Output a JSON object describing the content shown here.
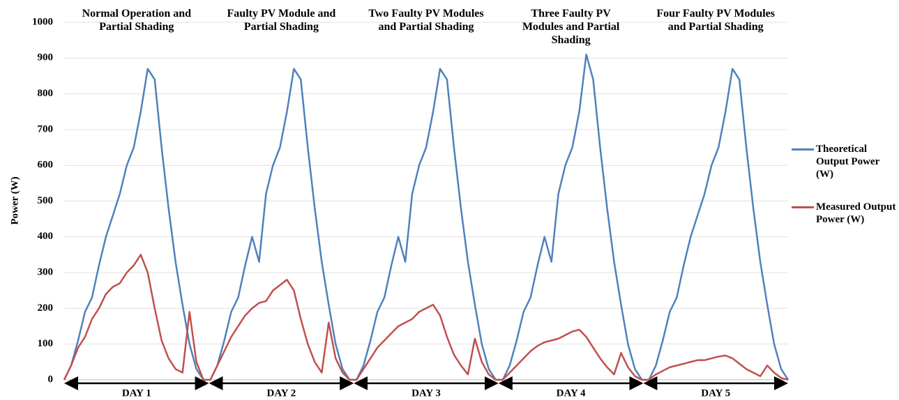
{
  "chart_data": {
    "type": "line",
    "ylabel": "Power (W)",
    "ylim": [
      0,
      1000
    ],
    "yticks": [
      0,
      100,
      200,
      300,
      400,
      500,
      600,
      700,
      800,
      900,
      1000
    ],
    "grid": true,
    "panel_titles": [
      "Normal Operation and Partial Shading",
      "Faulty PV Module and Partial Shading",
      "Two Faulty PV Modules and Partial Shading",
      "Three Faulty PV Modules and Partial Shading",
      "Four Faulty PV Modules and Partial Shading"
    ],
    "day_labels": [
      "DAY 1",
      "DAY 2",
      "DAY 3",
      "DAY 4",
      "DAY 5"
    ],
    "legend": "right",
    "series": [
      {
        "name": "Theoretical Output Power (W)",
        "color": "#4f81bd",
        "values": [
          0,
          40,
          110,
          190,
          230,
          320,
          400,
          460,
          520,
          600,
          650,
          750,
          870,
          840,
          650,
          480,
          330,
          210,
          100,
          30,
          0,
          0,
          40,
          110,
          190,
          230,
          320,
          400,
          330,
          520,
          600,
          650,
          750,
          870,
          840,
          650,
          480,
          330,
          210,
          100,
          30,
          0,
          0,
          40,
          110,
          190,
          230,
          320,
          400,
          330,
          520,
          600,
          650,
          750,
          870,
          840,
          650,
          480,
          330,
          210,
          100,
          30,
          0,
          0,
          40,
          110,
          190,
          230,
          320,
          400,
          330,
          520,
          600,
          650,
          750,
          910,
          840,
          650,
          480,
          330,
          210,
          100,
          30,
          0,
          0,
          40,
          110,
          190,
          230,
          320,
          400,
          460,
          520,
          600,
          650,
          750,
          870,
          840,
          650,
          480,
          330,
          210,
          100,
          30,
          0
        ]
      },
      {
        "name": "Measured Output Power (W)",
        "color": "#c0504d",
        "values": [
          0,
          40,
          90,
          120,
          170,
          200,
          240,
          260,
          270,
          300,
          320,
          350,
          300,
          200,
          110,
          60,
          30,
          20,
          190,
          50,
          0,
          0,
          40,
          80,
          120,
          150,
          180,
          200,
          215,
          220,
          250,
          265,
          280,
          250,
          170,
          100,
          50,
          20,
          160,
          60,
          20,
          0,
          0,
          30,
          60,
          90,
          110,
          130,
          150,
          160,
          170,
          190,
          200,
          210,
          180,
          120,
          70,
          40,
          15,
          115,
          50,
          15,
          0,
          0,
          20,
          40,
          60,
          80,
          95,
          105,
          110,
          115,
          125,
          135,
          140,
          120,
          90,
          60,
          35,
          15,
          75,
          35,
          10,
          0,
          0,
          15,
          25,
          35,
          40,
          45,
          50,
          55,
          55,
          60,
          65,
          68,
          60,
          45,
          30,
          20,
          10,
          40,
          20,
          5,
          0
        ]
      }
    ]
  }
}
